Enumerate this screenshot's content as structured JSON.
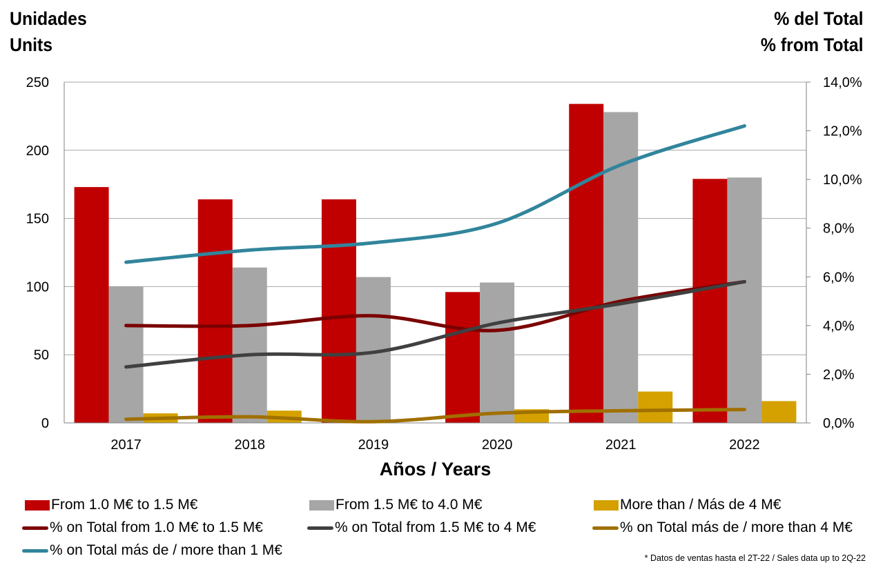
{
  "left_axis_title": {
    "line1": "Unidades",
    "line2": "Units"
  },
  "right_axis_title": {
    "line1": "% del Total",
    "line2": "% from Total"
  },
  "footnote": "* Datos de ventas hasta el 2T-22 / Sales data up to 2Q-22",
  "chart_data": {
    "type": "bar",
    "title": "",
    "xlabel": "Años / Years",
    "ylabel": "Unidades / Units",
    "y2label": "% del Total / % from Total",
    "categories": [
      "2017",
      "2018",
      "2019",
      "2020",
      "2021",
      "2022"
    ],
    "ylim": [
      0,
      250
    ],
    "yticks": [
      "0",
      "50",
      "100",
      "150",
      "200",
      "250"
    ],
    "y2lim": [
      0,
      14
    ],
    "y2ticks": [
      "0,0%",
      "2,0%",
      "4,0%",
      "6,0%",
      "8,0%",
      "10,0%",
      "12,0%",
      "14,0%"
    ],
    "grid": true,
    "legend_position": "bottom",
    "bar_series": [
      {
        "name": "From 1.0 M€ to 1.5 M€",
        "color": "#c00000",
        "values": [
          173,
          164,
          164,
          96,
          234,
          179
        ]
      },
      {
        "name": "From 1.5 M€ to 4.0 M€",
        "color": "#a6a6a6",
        "values": [
          100,
          114,
          107,
          103,
          228,
          180
        ]
      },
      {
        "name": "More than / Más de 4 M€",
        "color": "#d4a100",
        "values": [
          7,
          9,
          0,
          10,
          23,
          16
        ]
      }
    ],
    "line_series": [
      {
        "name": "% on Total from 1.0 M€ to 1.5 M€",
        "color": "#7b0000",
        "axis": "right",
        "values": [
          4.0,
          4.0,
          4.4,
          3.8,
          5.0,
          5.8
        ]
      },
      {
        "name": "% on Total from 1.5 M€ to 4 M€",
        "color": "#404040",
        "axis": "right",
        "values": [
          2.3,
          2.8,
          2.9,
          4.1,
          4.9,
          5.8
        ]
      },
      {
        "name": "% on Total más de / more than 4 M€",
        "color": "#a07000",
        "axis": "right",
        "values": [
          0.15,
          0.25,
          0.05,
          0.4,
          0.5,
          0.55
        ]
      },
      {
        "name": "% on Total más de / more than 1 M€",
        "color": "#31859c",
        "axis": "right",
        "values": [
          6.6,
          7.1,
          7.4,
          8.2,
          10.6,
          12.2
        ]
      }
    ]
  }
}
